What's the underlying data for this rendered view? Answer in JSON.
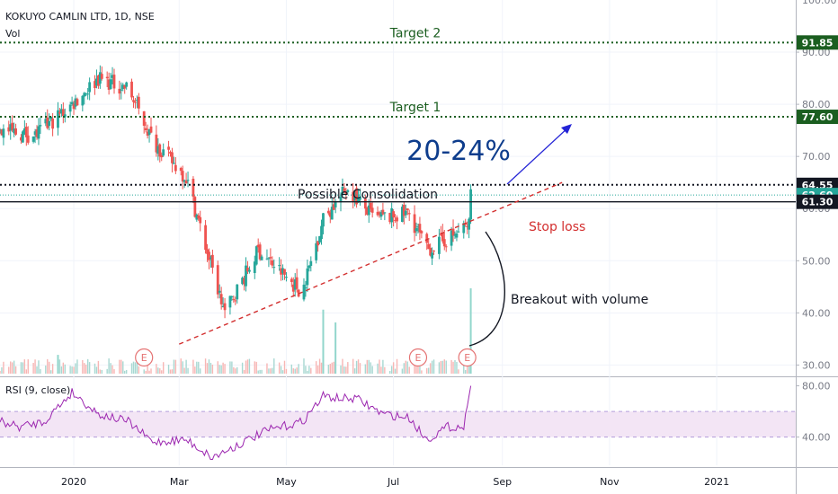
{
  "header": {
    "symbol_line": "KOKUYO CAMLIN LTD, 1D, NSE",
    "vol_label": "Vol"
  },
  "rsi_header": "RSI (9, close)",
  "colors": {
    "up": "#26a69a",
    "down": "#ef5350",
    "rsi": "#9c27b0",
    "rsi_band": "#f3e5f5",
    "target": "#1b5e20",
    "stop": "#d32f2f",
    "arrow": "#2424d6",
    "pct": "#0d3c8c"
  },
  "chart_data": [
    {
      "type": "candlestick",
      "title": "KOKUYO CAMLIN LTD, 1D, NSE",
      "ylim": [
        28,
        100
      ],
      "y_ticks": [
        "30.00",
        "40.00",
        "50.00",
        "60.00",
        "70.00",
        "80.00",
        "90.00",
        "100.00"
      ],
      "x_ticks": [
        "2020",
        "Mar",
        "May",
        "Jul",
        "Sep",
        "Nov",
        "2021"
      ],
      "x_tick_dates": [
        "2020-01-01",
        "2020-03-01",
        "2020-05-01",
        "2020-07-01",
        "2020-09-01",
        "2020-11-01",
        "2021-01-01"
      ],
      "x_range": [
        "2019-11-20",
        "2021-02-15"
      ],
      "price_path": [
        [
          "2019-11-20",
          75
        ],
        [
          "2019-12-10",
          74
        ],
        [
          "2019-12-31",
          80
        ],
        [
          "2020-01-15",
          85
        ],
        [
          "2020-02-01",
          83
        ],
        [
          "2020-02-15",
          73
        ],
        [
          "2020-03-05",
          66
        ],
        [
          "2020-03-20",
          48
        ],
        [
          "2020-03-27",
          40
        ],
        [
          "2020-04-15",
          52
        ],
        [
          "2020-05-10",
          44
        ],
        [
          "2020-05-22",
          58
        ],
        [
          "2020-06-05",
          64
        ],
        [
          "2020-06-20",
          58
        ],
        [
          "2020-07-10",
          59
        ],
        [
          "2020-07-20",
          52
        ],
        [
          "2020-08-05",
          55
        ],
        [
          "2020-08-13",
          57
        ],
        [
          "2020-08-14",
          63.4
        ]
      ],
      "levels": [
        {
          "label": "Target 2",
          "value": 91.85,
          "value_label": "91.85",
          "style": "dotted",
          "color": "#1b5e20"
        },
        {
          "label": "Target 1",
          "value": 77.6,
          "value_label": "77.60",
          "style": "dotted",
          "color": "#1b5e20"
        },
        {
          "label": "",
          "value": 64.55,
          "value_label": "64.55",
          "style": "dotted",
          "color": "#131722"
        },
        {
          "label": "",
          "value": 62.6,
          "value_label": "62.60",
          "style": "dotted-teal",
          "color": "#26a69a"
        },
        {
          "label": "",
          "value": 61.3,
          "value_label": "61.30",
          "style": "solid",
          "color": "#131722"
        }
      ],
      "trendline": {
        "start": [
          "2020-03-01",
          34
        ],
        "end": [
          "2020-10-05",
          65
        ],
        "label": "Stop loss"
      },
      "earnings_markers": [
        {
          "date": "2020-02-10",
          "label": "E"
        },
        {
          "date": "2020-07-15",
          "label": "E"
        },
        {
          "date": "2020-08-12",
          "label": "E"
        }
      ],
      "annotations": {
        "consolidation": "Possible Consolidation",
        "percent": "20-24%",
        "breakout": "Breakout with volume"
      },
      "volume_spikes": [
        {
          "date": "2019-12-23",
          "value": 0.22
        },
        {
          "date": "2020-05-22",
          "value": 0.75
        },
        {
          "date": "2020-05-29",
          "value": 0.6
        },
        {
          "date": "2020-08-14",
          "value": 1.0
        }
      ]
    },
    {
      "type": "line",
      "title": "RSI (9, close)",
      "ylim": [
        18,
        86
      ],
      "y_ticks": [
        "40.00",
        "80.00"
      ],
      "band": [
        40,
        60
      ],
      "series": [
        {
          "name": "RSI (9, close)",
          "points": [
            [
              "2019-11-20",
              52
            ],
            [
              "2019-12-01",
              48
            ],
            [
              "2019-12-15",
              52
            ],
            [
              "2019-12-31",
              75
            ],
            [
              "2020-01-15",
              58
            ],
            [
              "2020-02-01",
              52
            ],
            [
              "2020-02-15",
              36
            ],
            [
              "2020-03-05",
              38
            ],
            [
              "2020-03-20",
              24
            ],
            [
              "2020-04-05",
              35
            ],
            [
              "2020-04-20",
              45
            ],
            [
              "2020-05-10",
              52
            ],
            [
              "2020-05-22",
              72
            ],
            [
              "2020-06-01",
              70
            ],
            [
              "2020-06-10",
              70
            ],
            [
              "2020-06-25",
              58
            ],
            [
              "2020-07-10",
              55
            ],
            [
              "2020-07-20",
              38
            ],
            [
              "2020-08-01",
              48
            ],
            [
              "2020-08-10",
              48
            ],
            [
              "2020-08-14",
              80
            ]
          ]
        }
      ]
    }
  ]
}
